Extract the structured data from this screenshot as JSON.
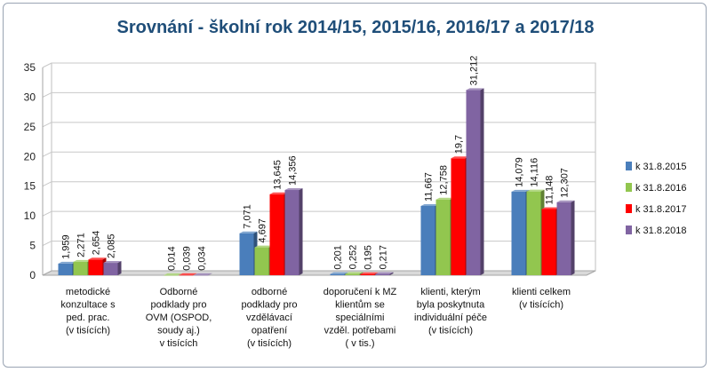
{
  "chart_data": {
    "type": "bar",
    "title": "Srovnání - školní rok  2014/15, 2015/16, 2016/17 a 2017/18",
    "xlabel": "",
    "ylabel": "",
    "ylim": [
      0,
      35
    ],
    "yticks": [
      "0",
      "5",
      "10",
      "15",
      "20",
      "25",
      "30",
      "35"
    ],
    "grid": true,
    "legend_position": "right",
    "categories": [
      [
        "metodické",
        "konzultace s",
        "ped. prac.",
        "(v tisících)"
      ],
      [
        "Odborné",
        "podklady pro",
        "OVM (OSPOD,",
        "soudy aj.)",
        "v tisících"
      ],
      [
        "odborné",
        "podklady pro",
        "vzdělávací",
        "opatření",
        "(v tisících)"
      ],
      [
        "doporučení k MZ",
        "klientům se",
        "speciálními",
        "vzděl. potřebami",
        "( v tis.)"
      ],
      [
        "klienti, kterým",
        "byla poskytnuta",
        "individuální péče",
        "(v tisících)"
      ],
      [
        "klienti celkem",
        "(v tisících)"
      ]
    ],
    "series": [
      {
        "name": "k 31.8.2015",
        "color": "#4a7ebb",
        "values": [
          1.959,
          null,
          7.071,
          0.201,
          11.667,
          14.079
        ],
        "labels": [
          "1,959",
          "",
          "7,071",
          "0,201",
          "11,667",
          "14,079"
        ]
      },
      {
        "name": "k 31.8.2016",
        "color": "#92c64f",
        "values": [
          2.271,
          0.014,
          4.697,
          0.252,
          12.758,
          14.116
        ],
        "labels": [
          "2,271",
          "0,014",
          "4,697",
          "0,252",
          "12,758",
          "14,116"
        ]
      },
      {
        "name": "k 31.8.2017",
        "color": "#ff0000",
        "values": [
          2.654,
          0.039,
          13.645,
          0.195,
          19.7,
          11.148
        ],
        "labels": [
          "2,654",
          "0,039",
          "13,645",
          "0,195",
          "19,7",
          "11,148"
        ]
      },
      {
        "name": "k 31.8.2018",
        "color": "#8064a2",
        "values": [
          2.085,
          0.034,
          14.356,
          0.217,
          31.212,
          12.307
        ],
        "labels": [
          "2,085",
          "0,034",
          "14,356",
          "0,217",
          "31,212",
          "12,307"
        ]
      }
    ]
  }
}
